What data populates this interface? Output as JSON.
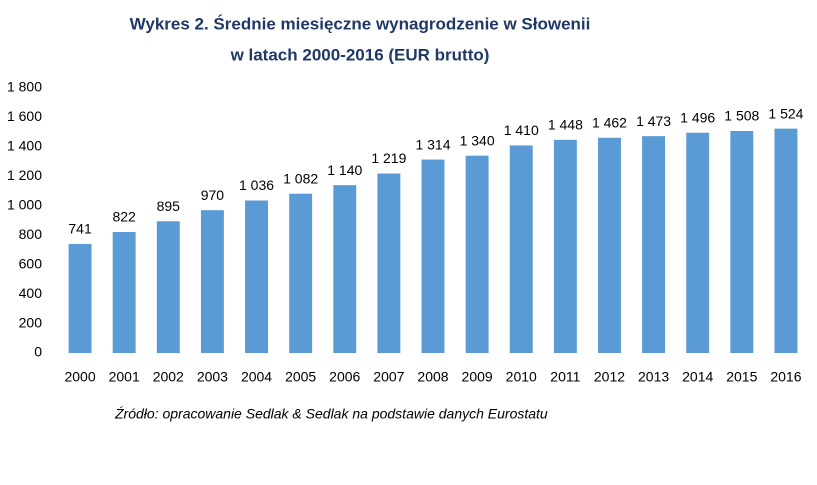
{
  "chart_data": {
    "type": "bar",
    "title": [
      "Wykres 2. Średnie miesięczne wynagrodzenie w Słowenii",
      "w latach 2000-2016 (EUR brutto)"
    ],
    "categories": [
      "2000",
      "2001",
      "2002",
      "2003",
      "2004",
      "2005",
      "2006",
      "2007",
      "2008",
      "2009",
      "2010",
      "2011",
      "2012",
      "2013",
      "2014",
      "2015",
      "2016"
    ],
    "values": [
      741,
      822,
      895,
      970,
      1036,
      1082,
      1140,
      1219,
      1314,
      1340,
      1410,
      1448,
      1462,
      1473,
      1496,
      1508,
      1524
    ],
    "value_labels": [
      "741",
      "822",
      "895",
      "970",
      "1 036",
      "1 082",
      "1 140",
      "1 219",
      "1 314",
      "1 340",
      "1 410",
      "1 448",
      "1 462",
      "1 473",
      "1 496",
      "1 508",
      "1 524"
    ],
    "color": "#5b9bd5",
    "ylim": [
      0,
      1800
    ],
    "yticks": [
      0,
      200,
      400,
      600,
      800,
      {
        "value": 1000,
        "label": "1 000"
      },
      {
        "value": 1200,
        "label": "1 200"
      },
      {
        "value": 1400,
        "label": "1 400"
      },
      {
        "value": 1600,
        "label": "1 600"
      },
      {
        "value": 1800,
        "label": "1 800"
      }
    ],
    "grid": false,
    "source": "Źródło: opracowanie Sedlak & Sedlak na podstawie danych Eurostatu"
  }
}
